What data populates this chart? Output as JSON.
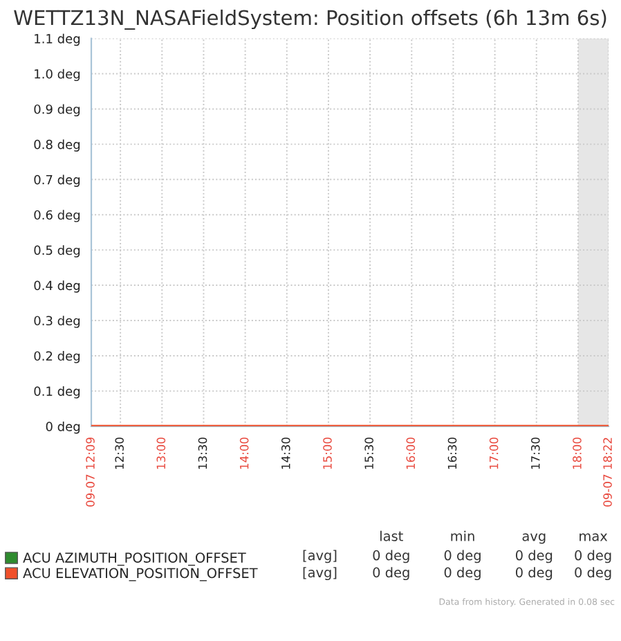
{
  "chart_data": {
    "type": "line",
    "title": "WETTZ13N_NASAFieldSystem: Position offsets (6h 13m 6s)",
    "x": [
      12.15,
      18.3667
    ],
    "series": [
      {
        "name": "ACU AZIMUTH_POSITION_OFFSET",
        "color": "#2e8b2e",
        "values": [
          null,
          null
        ]
      },
      {
        "name": "ACU ELEVATION_POSITION_OFFSET",
        "color": "#f0502a",
        "values": [
          0,
          0
        ]
      }
    ],
    "xlim": [
      12.15,
      18.3667
    ],
    "xticks": [
      {
        "value": 12.15,
        "label": "09-07 12:09"
      },
      {
        "value": 12.5,
        "label": "12:30"
      },
      {
        "value": 13,
        "label": "13:00"
      },
      {
        "value": 13.5,
        "label": "13:30"
      },
      {
        "value": 14,
        "label": "14:00"
      },
      {
        "value": 14.5,
        "label": "14:30"
      },
      {
        "value": 15,
        "label": "15:00"
      },
      {
        "value": 15.5,
        "label": "15:30"
      },
      {
        "value": 16,
        "label": "16:00"
      },
      {
        "value": 16.5,
        "label": "16:30"
      },
      {
        "value": 17,
        "label": "17:00"
      },
      {
        "value": 17.5,
        "label": "17:30"
      },
      {
        "value": 18,
        "label": "18:00"
      },
      {
        "value": 18.3667,
        "label": "09-07 18:22"
      }
    ],
    "ylim": [
      0,
      1.1
    ],
    "yticks": [
      {
        "value": 0,
        "label": "0 deg"
      },
      {
        "value": 0.1,
        "label": "0.1 deg"
      },
      {
        "value": 0.2,
        "label": "0.2 deg"
      },
      {
        "value": 0.3,
        "label": "0.3 deg"
      },
      {
        "value": 0.4,
        "label": "0.4 deg"
      },
      {
        "value": 0.5,
        "label": "0.5 deg"
      },
      {
        "value": 0.6,
        "label": "0.6 deg"
      },
      {
        "value": 0.7,
        "label": "0.7 deg"
      },
      {
        "value": 0.8,
        "label": "0.8 deg"
      },
      {
        "value": 0.9,
        "label": "0.9 deg"
      },
      {
        "value": 1.0,
        "label": "1.0 deg"
      },
      {
        "value": 1.1,
        "label": "1.1 deg"
      }
    ],
    "bands": [
      {
        "axis": "x",
        "from": 18.0,
        "to": 18.3667,
        "color": "#e6e6e6"
      }
    ],
    "grid": true,
    "legend": "bottom left",
    "line_style": "solid",
    "marker": "none",
    "annotations": [
      "last",
      "min",
      "avg",
      "max",
      "[avg]",
      "0 deg",
      "0 deg",
      "0 deg",
      "0 deg",
      "[avg]",
      "0 deg",
      "0 deg",
      "0 deg",
      "0 deg",
      "Data from history. Generated in 0.08 sec"
    ]
  }
}
